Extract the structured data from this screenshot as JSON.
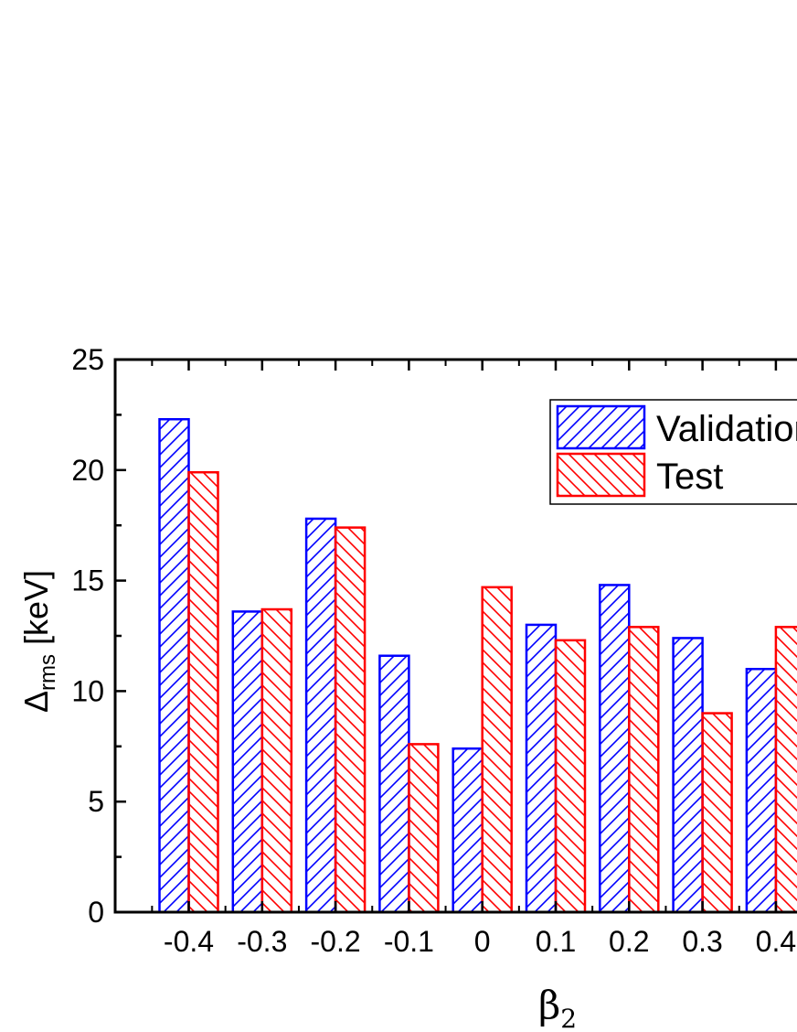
{
  "chart_data": {
    "type": "bar",
    "categories": [
      "-0.4",
      "-0.3",
      "-0.2",
      "-0.1",
      "0",
      "0.1",
      "0.2",
      "0.3",
      "0.4"
    ],
    "series": [
      {
        "name": "Validation",
        "values": [
          22.3,
          13.6,
          17.8,
          11.6,
          7.4,
          13.0,
          14.8,
          12.4,
          11.0
        ],
        "color": "#0000ff",
        "hatch": "forward"
      },
      {
        "name": "Test",
        "values": [
          19.9,
          13.7,
          17.4,
          7.6,
          14.7,
          12.3,
          12.9,
          9.0,
          12.9
        ],
        "color": "#ff0000",
        "hatch": "backward"
      }
    ],
    "xlabel": "β",
    "xlabel_sub": "2",
    "ylabel": "Δ",
    "ylabel_sub": "rms",
    "ylabel_unit": " [keV]",
    "ylim": [
      0,
      25
    ],
    "yticks": [
      "0",
      "5",
      "10",
      "15",
      "20",
      "25"
    ],
    "legend_position": "top-right",
    "grid": false
  }
}
